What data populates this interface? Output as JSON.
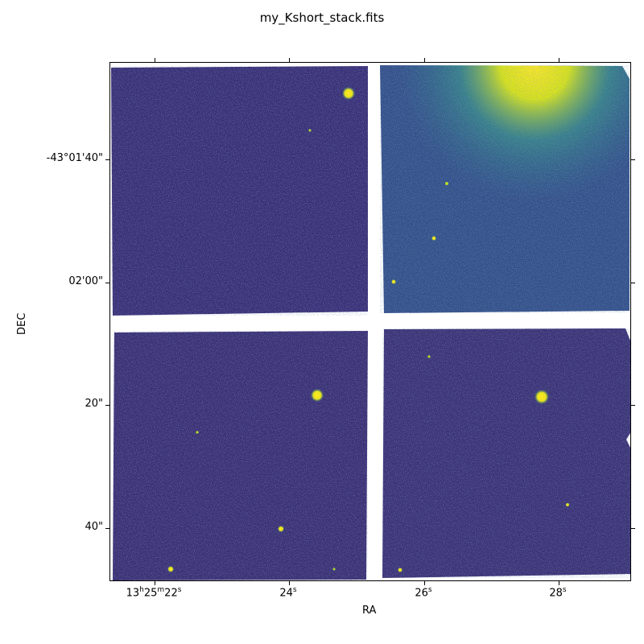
{
  "figure": {
    "title": "my_Kshort_stack.fits",
    "xlabel": "RA",
    "ylabel": "DEC",
    "colormap": "viridis",
    "colors": {
      "background": "#3b1c6e",
      "mid": "#2c7c8c",
      "bright": "#f8e621",
      "gap": "#ffffff"
    }
  },
  "axes": {
    "x_ticks": [
      {
        "prefix": "13",
        "h": "h",
        "mid": "25",
        "m": "m",
        "rest": "22",
        "unit": "s"
      },
      {
        "prefix": "",
        "h": "",
        "mid": "",
        "m": "",
        "rest": "24",
        "unit": "s"
      },
      {
        "prefix": "",
        "h": "",
        "mid": "",
        "m": "",
        "rest": "26",
        "unit": "s"
      },
      {
        "prefix": "",
        "h": "",
        "mid": "",
        "m": "",
        "rest": "28",
        "unit": "s"
      }
    ],
    "y_ticks": [
      "-43°01'40\"",
      "02'00\"",
      "20\"",
      "40\""
    ]
  },
  "image": {
    "stars": [
      {
        "name": "bright-star-top-left-quadrant",
        "ra": "13h25m24.9s",
        "dec": "-43°01'29\""
      },
      {
        "name": "bright-star-lower-left-quadrant",
        "ra": "13h25m24.4s",
        "dec": "-43°02'19\""
      },
      {
        "name": "bright-star-lower-right-quadrant",
        "ra": "13h25m27.8s",
        "dec": "-43°02'19\""
      },
      {
        "name": "star-lower-left-small",
        "ra": "13h25m23.9s",
        "dec": "-43°02'40\""
      },
      {
        "name": "star-bottom-left-corner",
        "ra": "13h25m22.1s",
        "dec": "-43°02'46\""
      }
    ]
  }
}
